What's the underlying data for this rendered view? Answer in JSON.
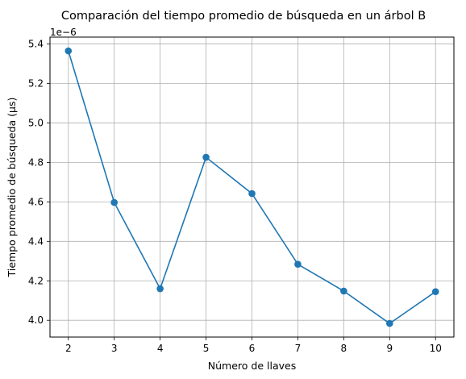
{
  "chart_data": {
    "type": "line",
    "title": "Comparación del tiempo promedio de búsqueda en un árbol B",
    "xlabel": "Número de llaves",
    "ylabel": "Tiempo promedio de búsqueda (µs)",
    "y_offset_label": "1e−6",
    "x": [
      2,
      3,
      4,
      5,
      6,
      7,
      8,
      9,
      10
    ],
    "series": [
      {
        "values": [
          5.365,
          4.597,
          4.16,
          4.826,
          4.642,
          4.284,
          4.148,
          3.984,
          4.145
        ],
        "color": "#1f77b4",
        "marker": "circle"
      }
    ],
    "x_ticks": [
      "2",
      "3",
      "4",
      "5",
      "6",
      "7",
      "8",
      "9",
      "10"
    ],
    "y_ticks": [
      "4.0",
      "4.2",
      "4.4",
      "4.6",
      "4.8",
      "5.0",
      "5.2",
      "5.4"
    ],
    "x_tick_values": [
      2,
      3,
      4,
      5,
      6,
      7,
      8,
      9,
      10
    ],
    "y_tick_values": [
      4.0,
      4.2,
      4.4,
      4.6,
      4.8,
      5.0,
      5.2,
      5.4
    ],
    "xlim": [
      1.6,
      10.4
    ],
    "ylim": [
      3.915,
      5.435
    ],
    "grid": true,
    "grid_color": "#b0b0b0"
  }
}
